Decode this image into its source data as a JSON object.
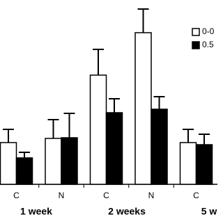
{
  "chart_data": {
    "type": "bar",
    "categories": [
      "C",
      "N",
      "C",
      "N",
      "C"
    ],
    "groups": [
      "1 week",
      "2 weeks",
      "5 w"
    ],
    "ylim": [
      0,
      265
    ],
    "series": [
      {
        "name": "0-0",
        "color": "#ffffff",
        "values": [
          60,
          66,
          157,
          218,
          60
        ],
        "errors": [
          19,
          27,
          37,
          34,
          19
        ]
      },
      {
        "name": "0.5",
        "color": "#000000",
        "values": [
          38,
          67,
          103,
          108,
          57
        ],
        "errors": [
          8,
          35,
          20,
          18,
          15
        ]
      }
    ]
  }
}
